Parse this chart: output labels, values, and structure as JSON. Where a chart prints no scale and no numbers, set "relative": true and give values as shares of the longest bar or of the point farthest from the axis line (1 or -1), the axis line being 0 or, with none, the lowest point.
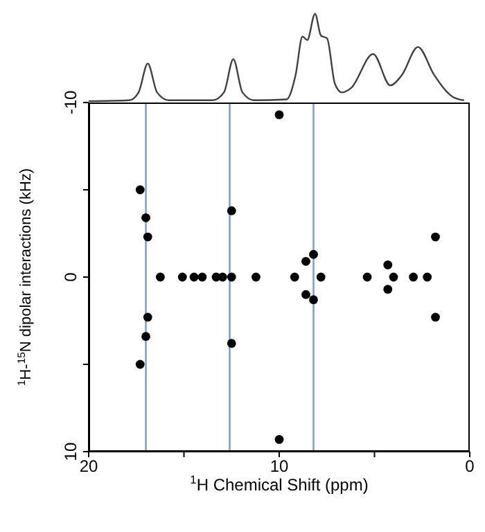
{
  "chart_data": [
    {
      "type": "line",
      "relative": true,
      "xlim": [
        20,
        0
      ],
      "tick_labels": false,
      "color": "#404040",
      "x": [
        20,
        17.87,
        17.38,
        16.9,
        16.41,
        15.8,
        13.5,
        12.9,
        12.41,
        11.93,
        11.32,
        9.62,
        9.14,
        8.78,
        8.53,
        8.12,
        7.81,
        7.49,
        7.08,
        6.72,
        6.23,
        5.07,
        4.17,
        3.56,
        2.72,
        1.87,
        0.9,
        0.3
      ],
      "values": [
        0,
        0.01,
        0.1,
        0.43,
        0.1,
        0.01,
        0.01,
        0.1,
        0.48,
        0.1,
        0.01,
        0.02,
        0.3,
        0.74,
        0.7,
        1,
        0.75,
        0.72,
        0.2,
        0.1,
        0.15,
        0.54,
        0.18,
        0.3,
        0.62,
        0.3,
        0.05,
        0.01
      ]
    },
    {
      "type": "scatter",
      "xlabel": "$^{1}$H Chemical Shift (ppm)",
      "ylabel": "$^{1}$H-$^{15}$N dipolar interactions (kHz)",
      "color": "#000000",
      "marker": "circle",
      "xlim": [
        20,
        0
      ],
      "xticks": [
        20,
        {
          "value": 15,
          "label": null
        },
        10,
        {
          "value": 5,
          "label": null
        },
        0
      ],
      "ylim": [
        10,
        -10
      ],
      "yticks": [
        -10,
        {
          "value": -5,
          "label": null
        },
        0,
        {
          "value": 5,
          "label": null
        },
        10
      ],
      "x": [
        16.24,
        15.08,
        14.47,
        14.04,
        13.31,
        12.97,
        12.5,
        11.22,
        9.19,
        7.81,
        5.38,
        4.0,
        2.96,
        2.23,
        17.0,
        17.0,
        12.5,
        12.5,
        8.2,
        8.2,
        8.6,
        8.6,
        4.3,
        4.3,
        17.3,
        17.3,
        16.9,
        16.9,
        10.0,
        10.0,
        1.8,
        1.8
      ],
      "values": [
        0,
        0,
        0,
        0,
        0,
        0,
        0,
        0,
        0,
        0,
        0,
        0,
        0,
        0,
        -3.4,
        3.4,
        -3.8,
        3.8,
        -1.3,
        1.3,
        -0.9,
        1.0,
        -0.7,
        0.7,
        -5,
        5,
        -2.3,
        2.3,
        -9.3,
        9.3,
        -2.3,
        2.3
      ],
      "ref_lines": [
        {
          "axis": "x",
          "value": 17,
          "color": "#7f9fcf"
        },
        {
          "axis": "x",
          "value": 12.6,
          "color": "#7f9fcf"
        },
        {
          "axis": "x",
          "value": 8.2,
          "color": "#7f9fcf"
        }
      ]
    }
  ]
}
